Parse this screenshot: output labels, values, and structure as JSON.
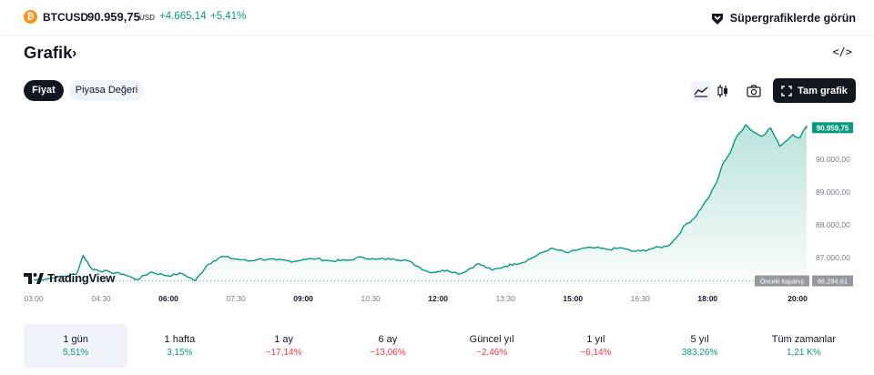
{
  "ticker": {
    "coin_glyph": "₿",
    "symbol": "BTCUSD",
    "price": "90.959,75",
    "currency": "USD",
    "change": "+4.665,14",
    "change_pct": "+5,41%",
    "up_color": "#089981",
    "down_color": "#f23645"
  },
  "supercharts_label": "Süpergrafiklerde görün",
  "header": {
    "title": "Grafik",
    "chevron": "›",
    "embed": "</>"
  },
  "tabs": [
    "Fiyat",
    "Piyasa Değeri"
  ],
  "full_chart_label": "Tam grafik",
  "brand_label": "TradingView",
  "chart_data": {
    "type": "area",
    "x_ticks": [
      "03:00",
      "04:30",
      "06:00",
      "07:30",
      "09:00",
      "10:30",
      "12:00",
      "13:30",
      "15:00",
      "16:30",
      "18:00",
      "20:00"
    ],
    "bold_x_ticks": [
      "06:00",
      "09:00",
      "12:00",
      "15:00",
      "18:00",
      "20:00"
    ],
    "y_ticks": [
      "90.000,00",
      "89.000,00",
      "88.000,00",
      "87.000,00"
    ],
    "y_tick_values": [
      90000,
      89000,
      88000,
      87000
    ],
    "ylim": [
      86200,
      91300
    ],
    "last_price_label": "90.959,75",
    "prev_close_label": "Önceki kapanış",
    "prev_close_value_label": "86.294,61",
    "prev_close": 86294.61,
    "line_color": "#089981",
    "series": [
      {
        "x": [
          3.0,
          3.3,
          3.6,
          3.95,
          4.1,
          4.3,
          4.7,
          5.0,
          5.3,
          5.6,
          6.0,
          6.3,
          6.6,
          6.85,
          7.0,
          7.2,
          7.5,
          7.8,
          8.0,
          8.4,
          8.8,
          9.0,
          9.3,
          9.6,
          10.0,
          10.3,
          10.6,
          11.0,
          11.3,
          11.6,
          11.8,
          12.0,
          12.2,
          12.5,
          12.9,
          13.2,
          13.5,
          13.7,
          13.85,
          14.1,
          14.5,
          14.9,
          15.2,
          15.5,
          15.8,
          16.1,
          16.3,
          16.5,
          16.8,
          17.1,
          17.3,
          17.5,
          17.7,
          17.9,
          18.05,
          18.2,
          18.35,
          18.5,
          18.65,
          18.85,
          19.0,
          19.2,
          19.4,
          19.6,
          19.9,
          20.05,
          20.2,
          20.2
        ],
        "y": [
          86320,
          86360,
          86420,
          86500,
          87070,
          86650,
          86560,
          86500,
          86330,
          86560,
          86450,
          86520,
          86300,
          86760,
          86900,
          87040,
          86960,
          86900,
          86960,
          86930,
          86890,
          86950,
          86970,
          86900,
          86920,
          87020,
          86950,
          86970,
          86920,
          86700,
          86560,
          86580,
          86620,
          86510,
          86820,
          86620,
          86740,
          86820,
          86840,
          87000,
          87280,
          87150,
          87280,
          87300,
          87250,
          87300,
          87200,
          87200,
          87290,
          87350,
          87600,
          88000,
          88200,
          88600,
          88900,
          89300,
          89900,
          90200,
          90700,
          91050,
          90850,
          90700,
          90950,
          90400,
          90750,
          90650,
          91000,
          90959.75
        ]
      }
    ]
  },
  "performance": [
    {
      "label": "1 gün",
      "value": "5,51%",
      "dir": "pos",
      "active": true
    },
    {
      "label": "1 hafta",
      "value": "3,15%",
      "dir": "pos",
      "active": false
    },
    {
      "label": "1 ay",
      "value": "−17,14%",
      "dir": "neg",
      "active": false
    },
    {
      "label": "6 ay",
      "value": "−13,06%",
      "dir": "neg",
      "active": false
    },
    {
      "label": "Güncel yıl",
      "value": "−2,46%",
      "dir": "neg",
      "active": false
    },
    {
      "label": "1 yıl",
      "value": "−6,14%",
      "dir": "neg",
      "active": false
    },
    {
      "label": "5 yıl",
      "value": "383,26%",
      "dir": "pos",
      "active": false
    },
    {
      "label": "Tüm zamanlar",
      "value": "1,21 K%",
      "dir": "pos",
      "active": false
    }
  ]
}
